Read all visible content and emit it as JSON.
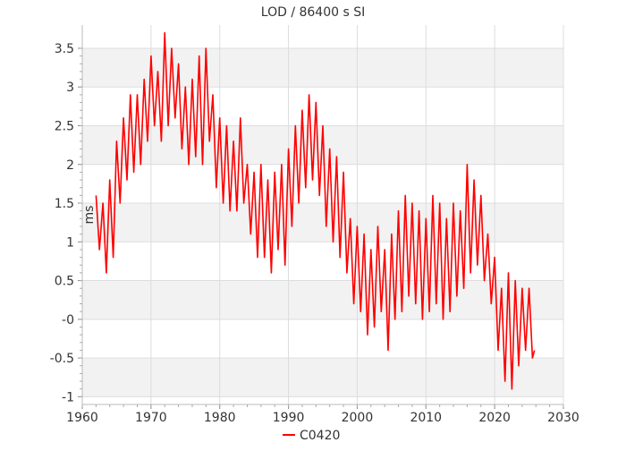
{
  "chart_data": {
    "type": "line",
    "title": "LOD / 86400 s SI",
    "xlabel": "",
    "ylabel": "ms",
    "xlim": [
      1960,
      2030
    ],
    "ylim": [
      -1.1,
      3.8
    ],
    "x_ticks": [
      "1960",
      "1970",
      "1980",
      "1990",
      "2000",
      "2010",
      "2020",
      "2030"
    ],
    "y_ticks": [
      "-1",
      "-0.5",
      "-0",
      "0.5",
      "1",
      "1.5",
      "2",
      "2.5",
      "3",
      "3.5"
    ],
    "grid": true,
    "legend": "bottom-center",
    "series": [
      {
        "name": "C0420",
        "color": "#ff0000",
        "x": [
          1962.0,
          1962.5,
          1963.0,
          1963.5,
          1964.0,
          1964.5,
          1965.0,
          1965.5,
          1966.0,
          1966.5,
          1967.0,
          1967.5,
          1968.0,
          1968.5,
          1969.0,
          1969.5,
          1970.0,
          1970.5,
          1971.0,
          1971.5,
          1972.0,
          1972.5,
          1973.0,
          1973.5,
          1974.0,
          1974.5,
          1975.0,
          1975.5,
          1976.0,
          1976.5,
          1977.0,
          1977.5,
          1978.0,
          1978.5,
          1979.0,
          1979.5,
          1980.0,
          1980.5,
          1981.0,
          1981.5,
          1982.0,
          1982.5,
          1983.0,
          1983.5,
          1984.0,
          1984.5,
          1985.0,
          1985.5,
          1986.0,
          1986.5,
          1987.0,
          1987.5,
          1988.0,
          1988.5,
          1989.0,
          1989.5,
          1990.0,
          1990.5,
          1991.0,
          1991.5,
          1992.0,
          1992.5,
          1993.0,
          1993.5,
          1994.0,
          1994.5,
          1995.0,
          1995.5,
          1996.0,
          1996.5,
          1997.0,
          1997.5,
          1998.0,
          1998.5,
          1999.0,
          1999.5,
          2000.0,
          2000.5,
          2001.0,
          2001.5,
          2002.0,
          2002.5,
          2003.0,
          2003.5,
          2004.0,
          2004.5,
          2005.0,
          2005.5,
          2006.0,
          2006.5,
          2007.0,
          2007.5,
          2008.0,
          2008.5,
          2009.0,
          2009.5,
          2010.0,
          2010.5,
          2011.0,
          2011.5,
          2012.0,
          2012.5,
          2013.0,
          2013.5,
          2014.0,
          2014.5,
          2015.0,
          2015.5,
          2016.0,
          2016.5,
          2017.0,
          2017.5,
          2018.0,
          2018.5,
          2019.0,
          2019.5,
          2020.0,
          2020.5,
          2021.0,
          2021.5,
          2022.0,
          2022.5,
          2023.0,
          2023.5,
          2024.0,
          2024.5,
          2025.0,
          2025.5,
          2025.8
        ],
        "values": [
          1.6,
          0.9,
          1.5,
          0.6,
          1.8,
          0.8,
          2.3,
          1.5,
          2.6,
          1.8,
          2.9,
          1.9,
          2.9,
          2.0,
          3.1,
          2.3,
          3.4,
          2.5,
          3.2,
          2.3,
          3.7,
          2.5,
          3.5,
          2.6,
          3.3,
          2.2,
          3.0,
          2.0,
          3.1,
          2.1,
          3.4,
          2.0,
          3.5,
          2.3,
          2.9,
          1.7,
          2.6,
          1.5,
          2.5,
          1.4,
          2.3,
          1.4,
          2.6,
          1.5,
          2.0,
          1.1,
          1.9,
          0.8,
          2.0,
          0.8,
          1.8,
          0.6,
          1.9,
          0.9,
          2.0,
          0.7,
          2.2,
          1.2,
          2.5,
          1.5,
          2.7,
          1.7,
          2.9,
          1.8,
          2.8,
          1.6,
          2.5,
          1.2,
          2.2,
          1.0,
          2.1,
          0.8,
          1.9,
          0.6,
          1.3,
          0.2,
          1.2,
          0.1,
          1.1,
          -0.2,
          0.9,
          -0.1,
          1.2,
          0.1,
          0.9,
          -0.4,
          1.1,
          0.0,
          1.4,
          0.1,
          1.6,
          0.3,
          1.5,
          0.2,
          1.4,
          0.0,
          1.3,
          0.1,
          1.6,
          0.2,
          1.5,
          0.0,
          1.3,
          0.1,
          1.5,
          0.3,
          1.4,
          0.4,
          2.0,
          0.6,
          1.8,
          0.7,
          1.6,
          0.5,
          1.1,
          0.2,
          0.8,
          -0.4,
          0.4,
          -0.8,
          0.6,
          -0.9,
          0.5,
          -0.6,
          0.4,
          -0.4,
          0.4,
          -0.5,
          -0.4
        ]
      }
    ]
  }
}
